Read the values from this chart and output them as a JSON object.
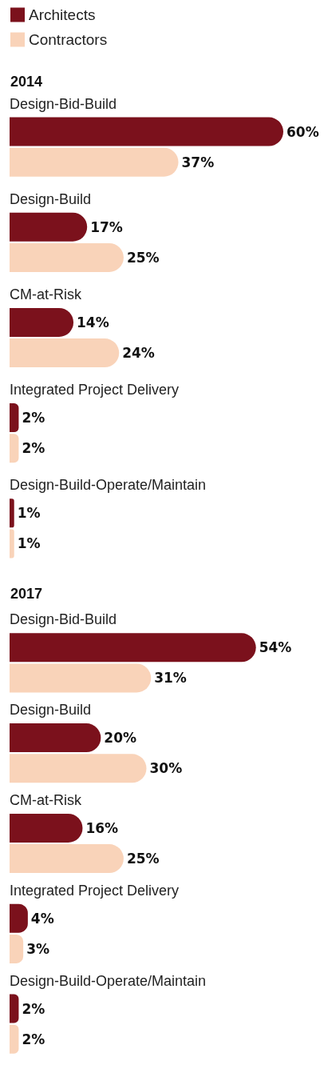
{
  "chart_data": [
    {
      "type": "bar",
      "title": "2014",
      "orientation": "horizontal",
      "legend": "top left",
      "categories": [
        "Design-Bid-Build",
        "Design-Build",
        "CM-at-Risk",
        "Integrated Project Delivery",
        "Design-Build-Operate/Maintain"
      ],
      "series": [
        {
          "name": "Architects",
          "color": "#7b111c",
          "values": [
            60,
            17,
            14,
            2,
            1
          ],
          "value_labels": [
            "60%",
            "17%",
            "14%",
            "2%",
            "1%"
          ]
        },
        {
          "name": "Contractors",
          "color": "#f9d3b9",
          "values": [
            37,
            25,
            24,
            2,
            1
          ],
          "value_labels": [
            "37%",
            "25%",
            "24%",
            "2%",
            "1%"
          ]
        }
      ]
    },
    {
      "type": "bar",
      "title": "2017",
      "orientation": "horizontal",
      "categories": [
        "Design-Bid-Build",
        "Design-Build",
        "CM-at-Risk",
        "Integrated Project Delivery",
        "Design-Build-Operate/Maintain"
      ],
      "series": [
        {
          "color": "#7b111c",
          "values": [
            54,
            20,
            16,
            4,
            2
          ],
          "value_labels": [
            "54%",
            "20%",
            "16%",
            "4%",
            "2%"
          ]
        },
        {
          "color": "#f9d3b9",
          "values": [
            31,
            30,
            25,
            3,
            2
          ],
          "value_labels": [
            "31%",
            "30%",
            "25%",
            "3%",
            "2%"
          ]
        }
      ]
    }
  ]
}
